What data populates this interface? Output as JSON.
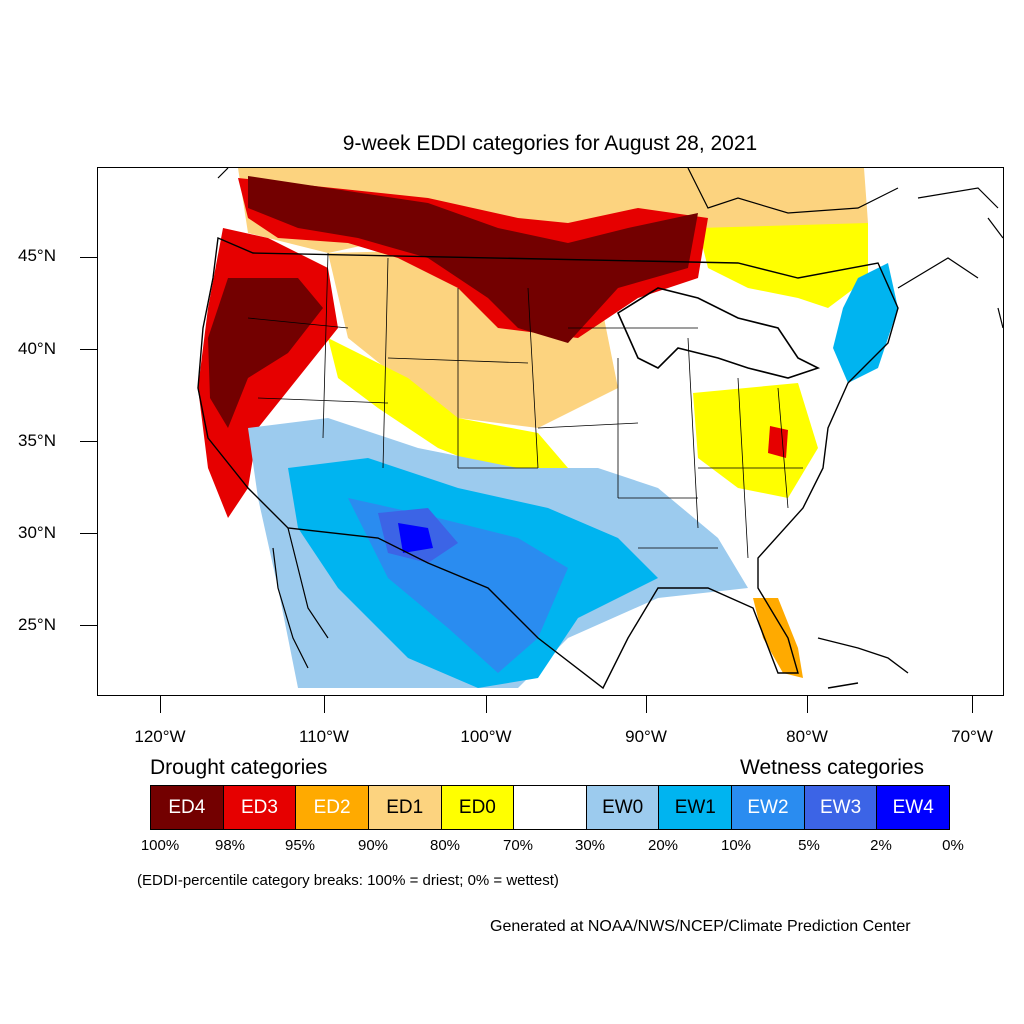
{
  "title": "9-week EDDI categories for August 28, 2021",
  "map": {
    "lat_labels": [
      "45°N",
      "40°N",
      "35°N",
      "30°N",
      "25°N"
    ],
    "lon_labels": [
      "120°W",
      "110°W",
      "100°W",
      "90°W",
      "80°W",
      "70°W"
    ]
  },
  "legend": {
    "drought_heading": "Drought categories",
    "wetness_heading": "Wetness categories",
    "categories": [
      {
        "label": "ED4",
        "color": "#730000",
        "text_color": "#ffffff"
      },
      {
        "label": "ED3",
        "color": "#e60000",
        "text_color": "#ffffff"
      },
      {
        "label": "ED2",
        "color": "#ffaa00",
        "text_color": "#ffffff"
      },
      {
        "label": "ED1",
        "color": "#fcd37f",
        "text_color": "#000000"
      },
      {
        "label": "ED0",
        "color": "#ffff00",
        "text_color": "#000000"
      },
      {
        "label": "",
        "color": "#ffffff",
        "text_color": "#000000"
      },
      {
        "label": "EW0",
        "color": "#9ccbee",
        "text_color": "#000000"
      },
      {
        "label": "EW1",
        "color": "#00b4f0",
        "text_color": "#000000"
      },
      {
        "label": "EW2",
        "color": "#2a8cf0",
        "text_color": "#ffffff"
      },
      {
        "label": "EW3",
        "color": "#3c64e6",
        "text_color": "#ffffff"
      },
      {
        "label": "EW4",
        "color": "#0000ff",
        "text_color": "#ffffff"
      }
    ],
    "percentiles": [
      "100%",
      "98%",
      "95%",
      "90%",
      "80%",
      "70%",
      "30%",
      "20%",
      "10%",
      "5%",
      "2%",
      "0%"
    ]
  },
  "note": "(EDDI-percentile category breaks: 100% = driest; 0% = wettest)",
  "credit": "Generated at NOAA/NWS/NCEP/Climate Prediction Center"
}
